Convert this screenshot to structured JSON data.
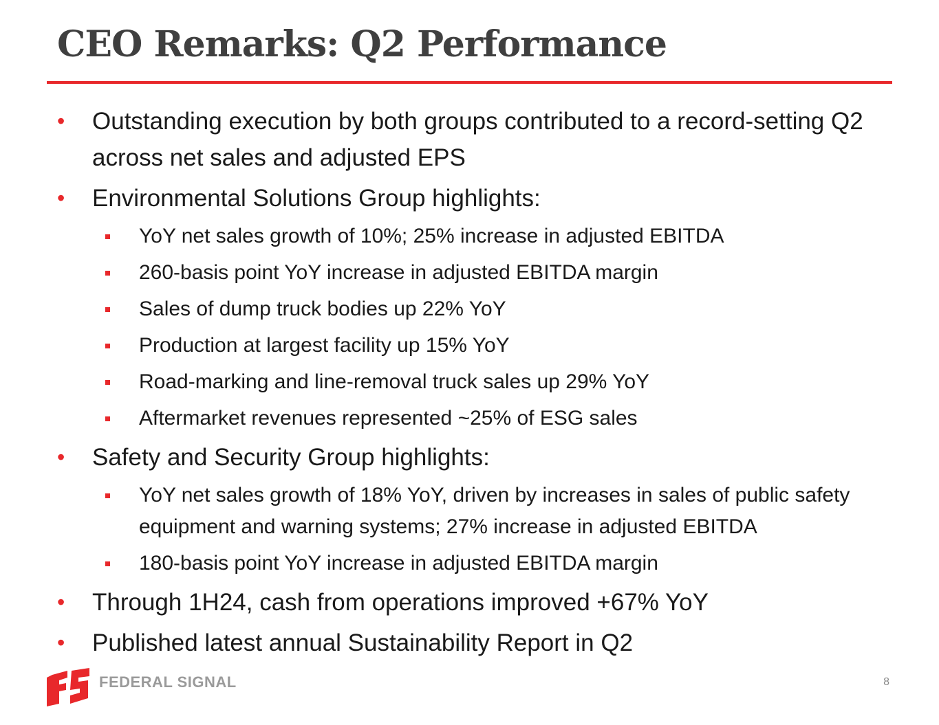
{
  "slide": {
    "title": "CEO Remarks: Q2 Performance",
    "page_number": "8"
  },
  "bullets": [
    {
      "text": "Outstanding execution by both groups contributed to a record-setting Q2 across net sales and adjusted EPS",
      "subs": []
    },
    {
      "text": "Environmental Solutions Group highlights:",
      "subs": [
        "YoY net sales growth of 10%; 25% increase in adjusted EBITDA",
        "260-basis point YoY increase in adjusted EBITDA margin",
        "Sales of dump truck bodies up 22% YoY",
        "Production at largest facility up 15% YoY",
        "Road-marking and line-removal truck sales up 29% YoY",
        "Aftermarket revenues represented ~25% of ESG sales"
      ]
    },
    {
      "text": "Safety and Security Group highlights:",
      "subs": [
        "YoY net sales growth of 18% YoY, driven by increases in sales of public safety equipment and warning systems; 27% increase in adjusted EBITDA",
        "180-basis point YoY increase in adjusted EBITDA margin"
      ]
    },
    {
      "text": "Through 1H24, cash from operations improved +67% YoY",
      "subs": []
    },
    {
      "text": "Published latest annual Sustainability Report in Q2",
      "subs": []
    }
  ],
  "footer": {
    "logo_text": "FEDERAL SIGNAL",
    "logo_icon": "federal-signal-logo-mark"
  },
  "colors": {
    "accent": "#e8282b",
    "title": "#3f3f3f",
    "logo_gray": "#9a9a9a"
  }
}
